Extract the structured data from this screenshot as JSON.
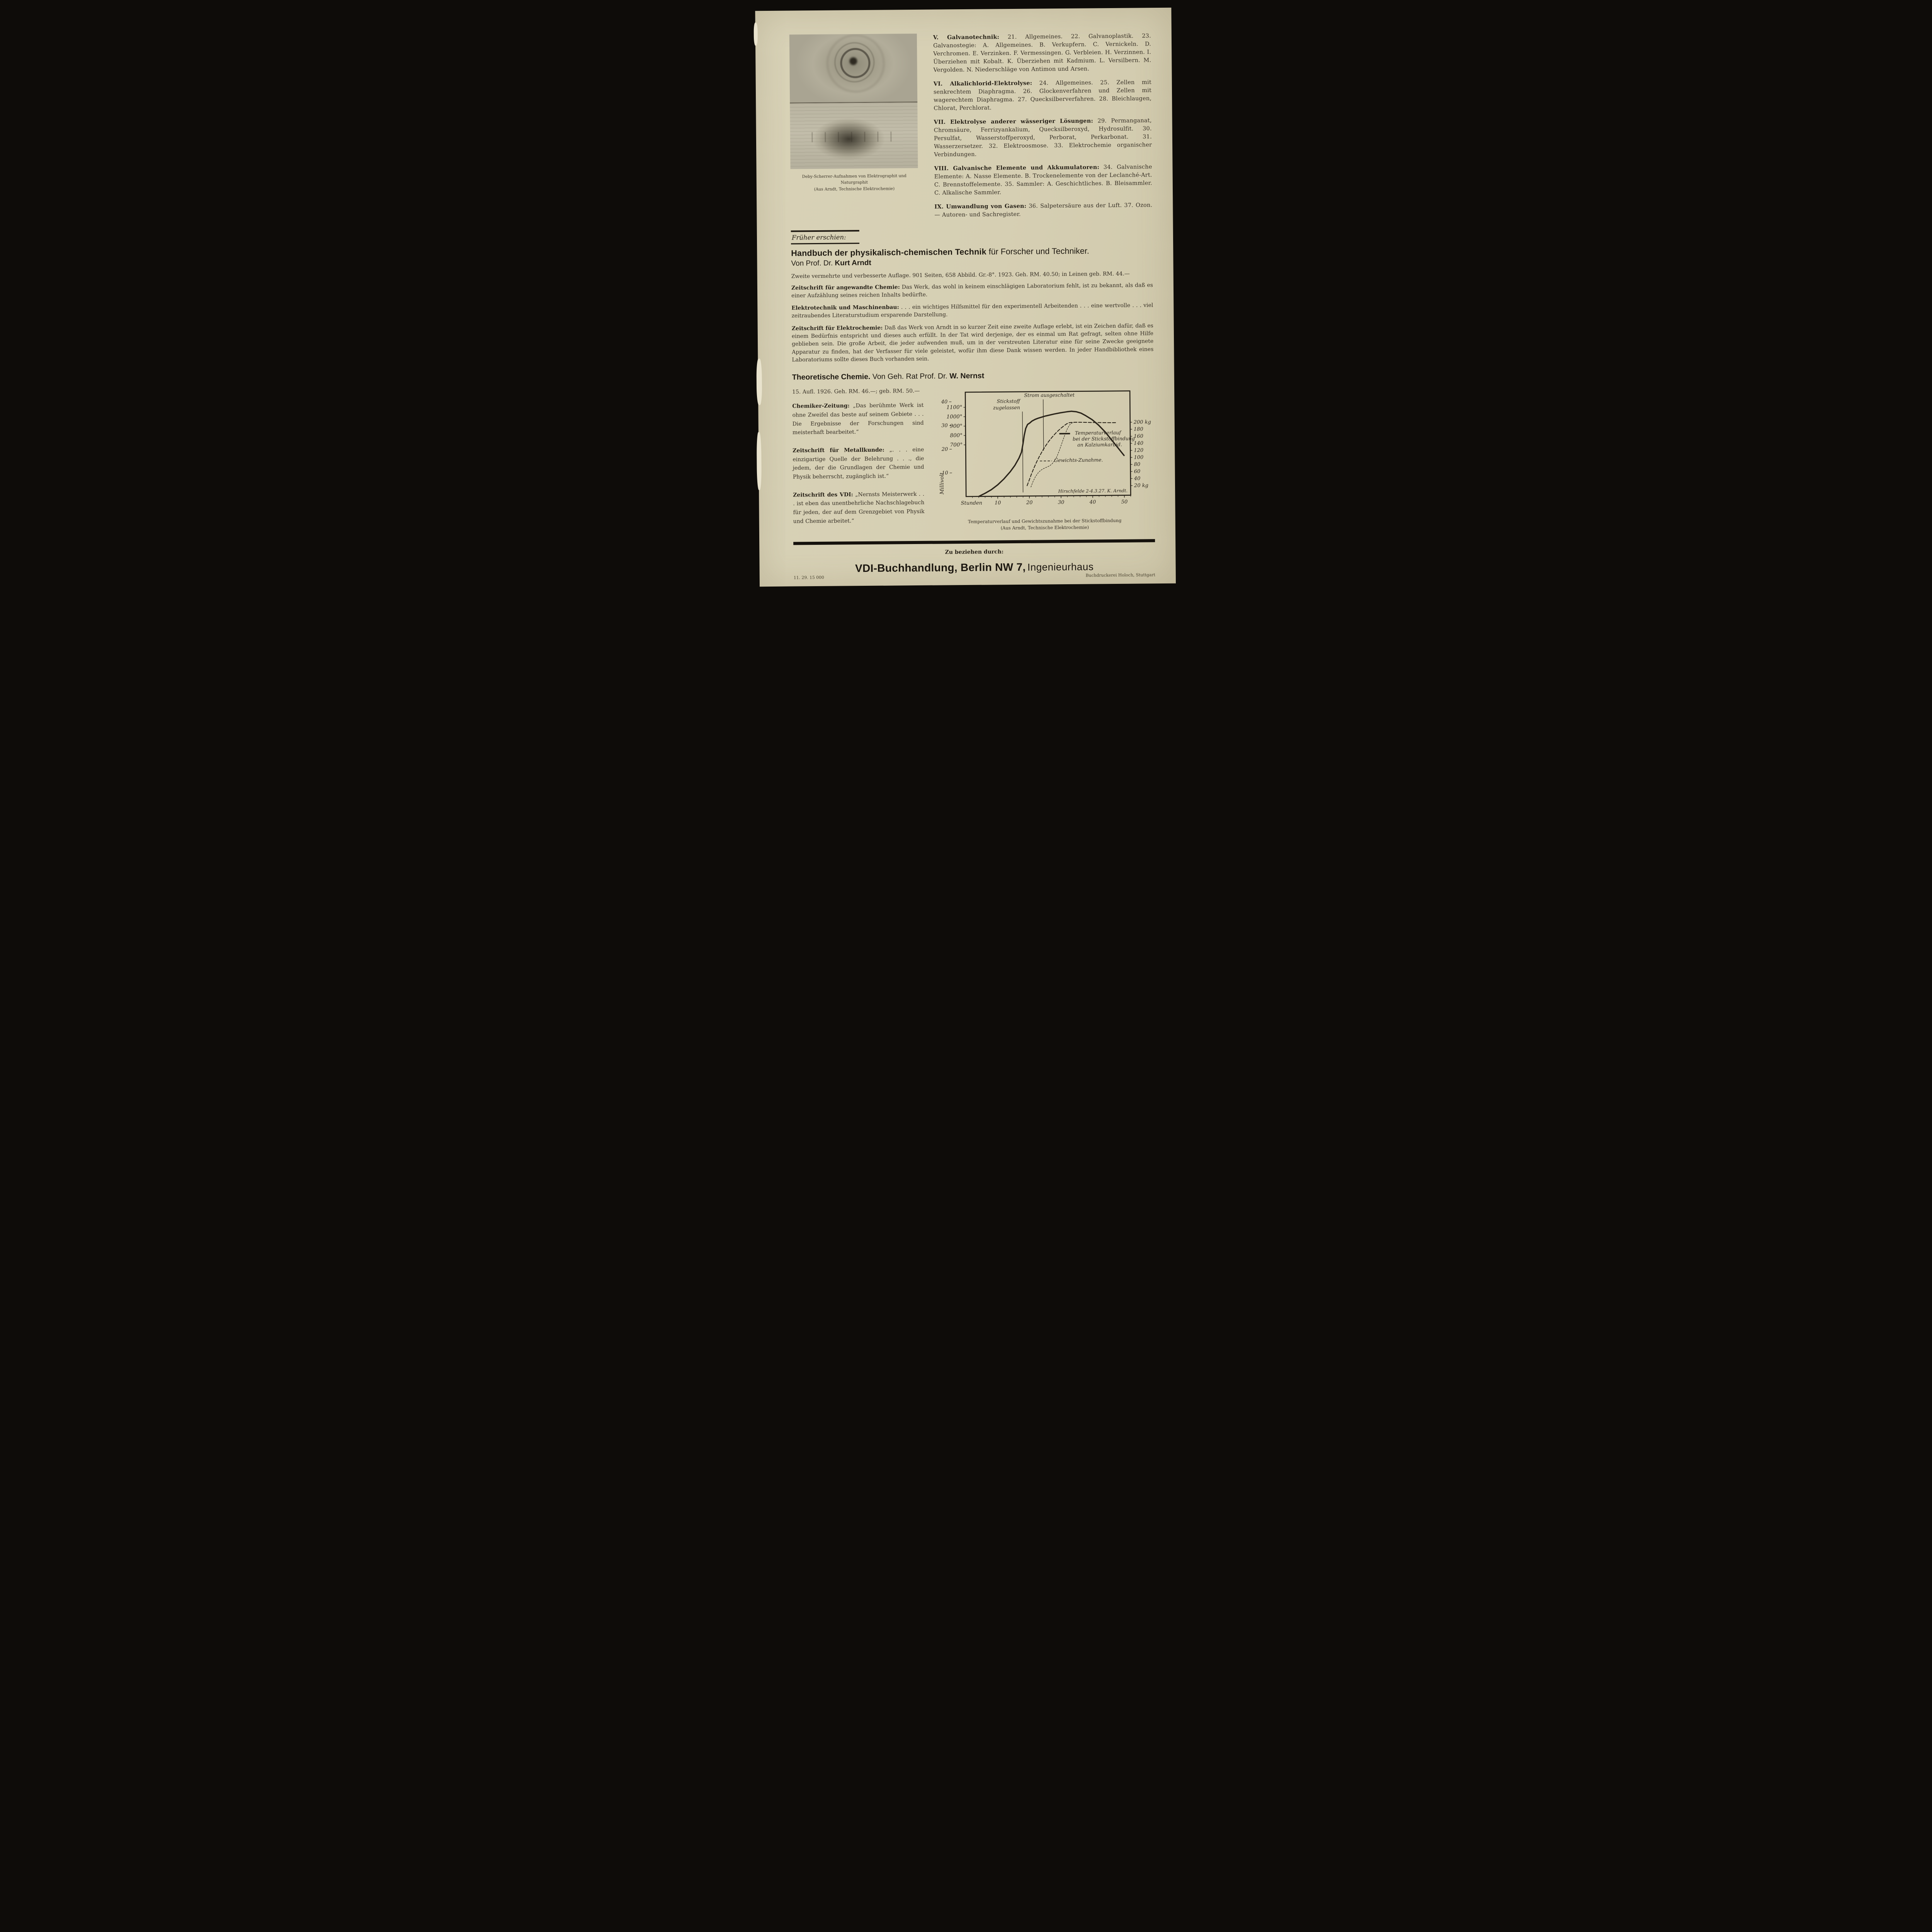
{
  "photos": {
    "caption_line1": "Deby-Scherrer-Aufnahmen von Elektrographit und Naturgraphit",
    "caption_line2": "(Aus Arndt, Technische Elektrochemie)"
  },
  "toc": {
    "items": [
      {
        "lead": "V. Galvanotechnik:",
        "text": "21. Allgemeines. 22. Galvanoplastik. 23. Galvanostegie: A. Allgemeines. B. Verkupfern. C. Vernickeln. D. Verchromen. E. Verzinken. F. Vermessingen. G. Verbleien. H. Verzinnen. I. Überziehen mit Kobalt. K. Überziehen mit Kadmium. L. Versilbern. M. Vergolden. N. Niederschläge von Antimon und Arsen."
      },
      {
        "lead": "VI. Alkalichlorid-Elektrolyse:",
        "text": "24. Allgemeines. 25. Zellen mit senkrechtem Diaphragma. 26. Glockenverfahren und Zellen mit wagerechtem Diaphragma. 27. Quecksilberverfahren. 28. Bleichlaugen, Chlorat, Perchlorat."
      },
      {
        "lead": "VII. Elektrolyse anderer wässeriger Lösungen:",
        "text": "29. Permanganat, Chromsäure, Ferrizyankalium, Quecksilberoxyd, Hydrosulfit. 30. Persulfat, Wasserstoffperoxyd, Perborat, Perkarbonat. 31. Wasserzersetzer. 32. Elektroosmose. 33. Elektrochemie organischer Verbindungen."
      },
      {
        "lead": "VIII. Galvanische Elemente und Akkumulatoren:",
        "text": "34. Galvanische Elemente: A. Nasse Elemente. B. Trockenelemente von der Leclanché-Art. C. Brennstoffelemente. 35. Sammler: A. Geschichtliches. B. Bleisammler. C. Alkalische Sammler."
      },
      {
        "lead": "IX. Umwandlung von Gasen:",
        "text": "36. Salpetersäure aus der Luft. 37. Ozon. — Autoren- und Sachregister."
      }
    ]
  },
  "frueher_label": "Früher erschien:",
  "handbuch": {
    "title_bold": "Handbuch der physikalisch-chemischen Technik",
    "title_rest": "für Forscher und Techniker.",
    "byline_prefix": "Von Prof. Dr.",
    "byline_author": "Kurt Arndt",
    "edition_line": "Zweite vermehrte und verbesserte Auflage. 901 Seiten, 658 Abbild. Gr.-8°. 1923. Geh. RM. 40.50; in Leinen geb. RM. 44.—",
    "reviews": [
      {
        "source": "Zeitschrift für angewandte Chemie:",
        "text": "Das Werk, das wohl in keinem einschlägigen Laboratorium fehlt, ist zu bekannt, als daß es einer Aufzählung seines reichen Inhalts bedürfte."
      },
      {
        "source": "Elektrotechnik und Maschinenbau:",
        "text": ". . . ein wichtiges Hilfsmittel für den experimentell Arbeitenden . . . eine wertvolle . . . viel zeitraubendes Literaturstudium ersparende Darstellung."
      },
      {
        "source": "Zeitschrift für Elektrochemie:",
        "text": "Daß das Werk von Arndt in so kurzer Zeit eine zweite Auflage erlebt, ist ein Zeichen dafür, daß es einem Bedürfnis entspricht und dieses auch erfüllt. In der Tat wird derjenige, der es einmal um Rat gefragt, selten ohne Hilfe geblieben sein. Die große Arbeit, die jeder aufwenden muß, um in der verstreuten Literatur eine für seine Zwecke geeignete Apparatur zu finden, hat der Verfasser für viele geleistet, wofür ihm diese Dank wissen werden. In jeder Handbibliothek eines Laboratoriums sollte dieses Buch vorhanden sein."
      }
    ]
  },
  "nernst": {
    "title_bold": "Theoretische Chemie.",
    "byline_prefix": "Von Geh. Rat Prof. Dr.",
    "byline_author": "W. Nernst",
    "edition_line": "15. Aufl. 1926. Geh. RM. 46.—; geb. RM. 50.—",
    "quotes": [
      {
        "source": "Chemiker-Zeitung:",
        "text": "„Das berühmte Werk ist ohne Zweifel das beste auf seinem Gebiete . . . Die Ergebnisse der Forschungen sind meisterhaft bearbeitet.“"
      },
      {
        "source": "Zeitschrift für Metallkunde:",
        "text": "„. . . eine einzigartige Quelle der Belehrung . . ., die jedem, der die Grundlagen der Chemie und Physik beherrscht, zugänglich ist.“"
      },
      {
        "source": "Zeitschrift des VDI:",
        "text": "„Nernsts Meisterwerk . . . ist eben das unentbehrliche Nachschlagebuch für jeden, der auf dem Grenzgebiet von Physik und Chemie arbeitet.“"
      }
    ]
  },
  "chart_data": {
    "type": "line",
    "title": "Temperaturverlauf und Gewichtszunahme bei der Stickstoffbindung",
    "subtitle": "(Aus Arndt, Technische Elektrochemie)",
    "attribution": "Hirschfelde 2-4.3.27. K. Arndt.",
    "xlabel": "Stunden",
    "x_range": [
      0,
      52
    ],
    "x_major_ticks": [
      10,
      20,
      30,
      40,
      50
    ],
    "x_minor_step": 2,
    "y_left_label": "Millivolt",
    "y_left_range": [
      0,
      44
    ],
    "y_left_ticks": [
      10,
      20,
      30,
      40
    ],
    "temperature_scale_labels": [
      "1100°",
      "1000°",
      "900°",
      "800°",
      "700°"
    ],
    "y_right_unit": "kg",
    "y_right_tick_values": [
      200,
      180,
      160,
      140,
      120,
      100,
      80,
      60,
      40,
      20
    ],
    "y_right_tick_labels": [
      "200 kg",
      "180",
      "160",
      "140",
      "120",
      "100",
      "80",
      "60",
      "40",
      "20 kg"
    ],
    "annotations": [
      {
        "label_lines": [
          "Stickstoff",
          "zugelassen"
        ],
        "hour": 18
      },
      {
        "label_lines": [
          "Strom ausgeschaltet"
        ],
        "hour": 24.6
      }
    ],
    "legend": [
      {
        "style": "solid",
        "label_lines": [
          "Temperaturverlauf",
          "bei der Stickstoffbindung",
          "an Kalziumkarbid."
        ]
      },
      {
        "style": "dashed",
        "label_lines": [
          "Gewichts-Zunahme."
        ]
      }
    ],
    "series": [
      {
        "name": "Temperaturverlauf",
        "axis": "millivolt",
        "style": "solid",
        "points": [
          [
            4,
            0
          ],
          [
            6,
            1.3
          ],
          [
            8,
            2.8
          ],
          [
            10,
            4.8
          ],
          [
            12,
            7.3
          ],
          [
            14,
            10.3
          ],
          [
            15.5,
            13
          ],
          [
            16.8,
            16
          ],
          [
            17.6,
            18.5
          ],
          [
            18.1,
            22
          ],
          [
            18.5,
            25.5
          ],
          [
            19,
            28.5
          ],
          [
            19.6,
            30.2
          ],
          [
            20.3,
            30.8
          ],
          [
            21,
            31.6
          ],
          [
            22,
            32.3
          ],
          [
            23,
            32.8
          ],
          [
            24,
            33.2
          ],
          [
            25,
            33.6
          ],
          [
            26,
            33.9
          ],
          [
            28,
            34.5
          ],
          [
            30,
            35
          ],
          [
            32,
            35.4
          ],
          [
            33.5,
            35.6
          ],
          [
            35,
            35.4
          ],
          [
            36.5,
            34.8
          ],
          [
            38,
            33.7
          ],
          [
            40,
            32
          ],
          [
            42,
            29.7
          ],
          [
            44,
            26.9
          ],
          [
            46,
            23.6
          ],
          [
            48,
            20.2
          ],
          [
            50,
            16.8
          ]
        ]
      },
      {
        "name": "Gewichts-Zunahme",
        "axis": "kg",
        "style": "dashed",
        "points": [
          [
            19.3,
            22
          ],
          [
            20,
            38
          ],
          [
            20.7,
            55
          ],
          [
            21.5,
            72
          ],
          [
            22.3,
            88
          ],
          [
            23.2,
            104
          ],
          [
            24.2,
            120
          ],
          [
            25.2,
            134
          ],
          [
            26.2,
            147
          ],
          [
            27.2,
            158
          ],
          [
            28.2,
            168
          ],
          [
            29.2,
            177
          ],
          [
            30.2,
            185
          ],
          [
            31.2,
            192
          ],
          [
            32,
            197
          ],
          [
            32.8,
            200
          ],
          [
            34,
            201
          ],
          [
            36,
            201
          ],
          [
            38,
            200.5
          ],
          [
            40,
            200
          ],
          [
            43,
            199.5
          ],
          [
            46,
            199
          ],
          [
            47.5,
            199
          ]
        ]
      },
      {
        "name": "Gewichts-Zunahme (fein)",
        "axis": "kg",
        "style": "fine-dashed",
        "points": [
          [
            20.5,
            18
          ],
          [
            21.2,
            34
          ],
          [
            22,
            48
          ],
          [
            22.8,
            58
          ],
          [
            23.6,
            65
          ],
          [
            24.5,
            70
          ],
          [
            25.5,
            74
          ],
          [
            26.5,
            78
          ],
          [
            27.3,
            84
          ],
          [
            28,
            92
          ],
          [
            28.8,
            104
          ],
          [
            29.6,
            122
          ],
          [
            30.4,
            142
          ],
          [
            31.2,
            162
          ],
          [
            32,
            180
          ],
          [
            32.8,
            193
          ],
          [
            33.6,
            199
          ],
          [
            34.5,
            201
          ]
        ]
      }
    ]
  },
  "order_section": {
    "lead_in": "Zu beziehen durch:",
    "publisher_bold": "VDI-Buchhandlung, Berlin NW 7,",
    "publisher_light": "Ingenieurhaus"
  },
  "footer": {
    "left": "11. 29. 15 000",
    "right": "Buchdruckerei Holoch, Stuttgart"
  }
}
